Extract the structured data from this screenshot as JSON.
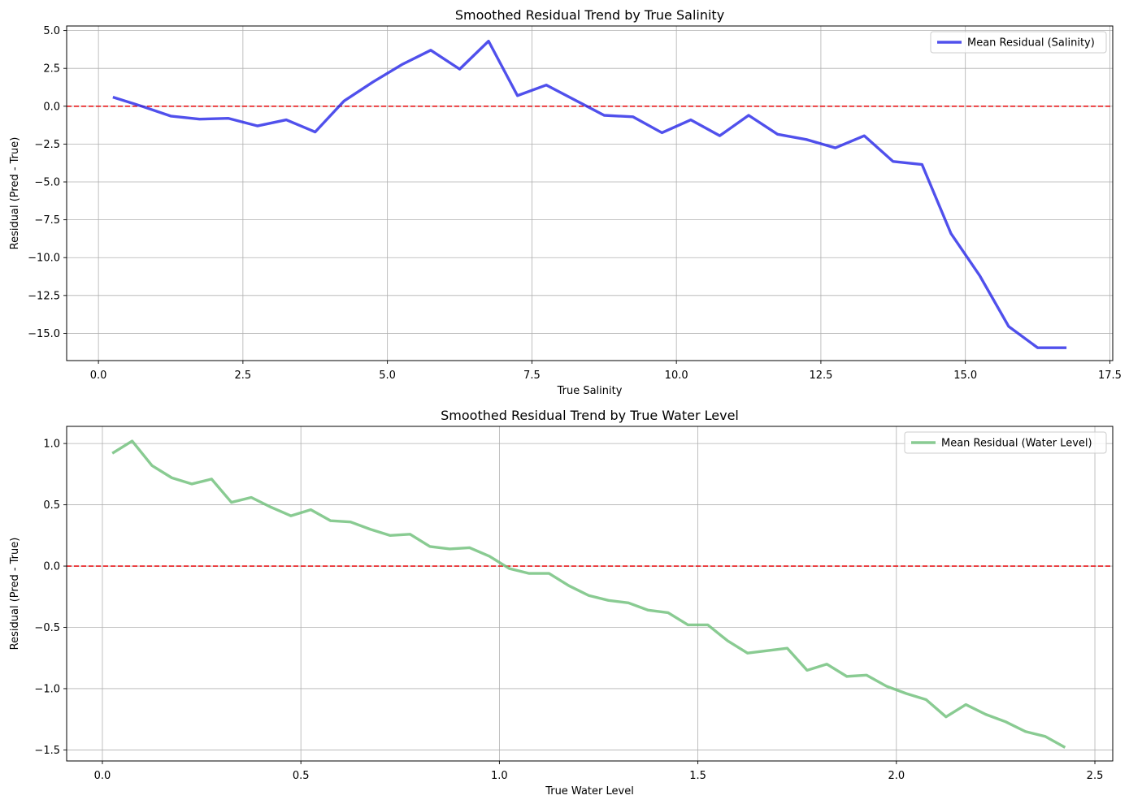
{
  "chart_data": [
    {
      "type": "line",
      "title": "Smoothed Residual Trend by True Salinity",
      "xlabel": "True Salinity",
      "ylabel": "Residual (Pred - True)",
      "xlim": [
        -0.55,
        17.55
      ],
      "ylim": [
        -16.8,
        5.3
      ],
      "xticks": [
        0.0,
        2.5,
        5.0,
        7.5,
        10.0,
        12.5,
        15.0,
        17.5
      ],
      "xtick_labels": [
        "0.0",
        "2.5",
        "5.0",
        "7.5",
        "10.0",
        "12.5",
        "15.0",
        "17.5"
      ],
      "yticks": [
        5.0,
        2.5,
        0.0,
        -2.5,
        -5.0,
        -7.5,
        -10.0,
        -12.5,
        -15.0
      ],
      "ytick_labels": [
        "5.0",
        "2.5",
        "0.0",
        "−2.5",
        "−5.0",
        "−7.5",
        "−10.0",
        "−12.5",
        "−15.0"
      ],
      "grid": true,
      "legend_position": "top-right",
      "reference_line": {
        "y": 0,
        "color": "#e8191b",
        "style": "dashed"
      },
      "series": [
        {
          "name": "Mean Residual (Salinity)",
          "color": "#2a2ae8",
          "x": [
            0.25,
            0.75,
            1.25,
            1.75,
            2.25,
            2.75,
            3.25,
            3.75,
            4.25,
            4.75,
            5.25,
            5.75,
            6.25,
            6.75,
            7.25,
            7.75,
            8.25,
            8.75,
            9.25,
            9.75,
            10.25,
            10.75,
            11.25,
            11.75,
            12.25,
            12.75,
            13.25,
            13.75,
            14.25,
            14.75,
            15.25,
            15.75,
            16.25,
            16.75
          ],
          "y": [
            0.6,
            0.0,
            -0.65,
            -0.85,
            -0.8,
            -1.3,
            -0.9,
            -1.7,
            0.35,
            1.6,
            2.75,
            3.7,
            2.45,
            4.3,
            0.7,
            1.4,
            0.4,
            -0.6,
            -0.7,
            -1.75,
            -0.9,
            -1.95,
            -0.6,
            -1.85,
            -2.2,
            -2.75,
            -1.95,
            -3.65,
            -3.85,
            -8.4,
            -11.2,
            -14.55,
            -15.95,
            -15.95
          ]
        }
      ]
    },
    {
      "type": "line",
      "title": "Smoothed Residual Trend by True Water Level",
      "xlabel": "True Water Level",
      "ylabel": "Residual (Pred - True)",
      "xlim": [
        -0.09,
        2.545
      ],
      "ylim": [
        -1.59,
        1.14
      ],
      "xticks": [
        0.0,
        0.5,
        1.0,
        1.5,
        2.0,
        2.5
      ],
      "xtick_labels": [
        "0.0",
        "0.5",
        "1.0",
        "1.5",
        "2.0",
        "2.5"
      ],
      "yticks": [
        1.0,
        0.5,
        0.0,
        -0.5,
        -1.0,
        -1.5
      ],
      "ytick_labels": [
        "1.0",
        "0.5",
        "0.0",
        "−0.5",
        "−1.0",
        "−1.5"
      ],
      "grid": true,
      "legend_position": "top-right",
      "reference_line": {
        "y": 0,
        "color": "#e8191b",
        "style": "dashed"
      },
      "series": [
        {
          "name": "Mean Residual (Water Level)",
          "color": "#6fc07a",
          "x": [
            0.025,
            0.075,
            0.125,
            0.175,
            0.225,
            0.275,
            0.325,
            0.375,
            0.425,
            0.475,
            0.525,
            0.575,
            0.625,
            0.675,
            0.725,
            0.775,
            0.825,
            0.875,
            0.925,
            0.975,
            1.025,
            1.075,
            1.125,
            1.175,
            1.225,
            1.275,
            1.325,
            1.375,
            1.425,
            1.475,
            1.525,
            1.575,
            1.625,
            1.675,
            1.725,
            1.775,
            1.825,
            1.875,
            1.925,
            1.975,
            2.025,
            2.075,
            2.125,
            2.175,
            2.225,
            2.275,
            2.325,
            2.375,
            2.425
          ],
          "y": [
            0.92,
            1.02,
            0.82,
            0.72,
            0.67,
            0.71,
            0.52,
            0.56,
            0.48,
            0.41,
            0.46,
            0.37,
            0.36,
            0.3,
            0.25,
            0.26,
            0.16,
            0.14,
            0.15,
            0.08,
            -0.02,
            -0.06,
            -0.06,
            -0.16,
            -0.24,
            -0.28,
            -0.3,
            -0.36,
            -0.38,
            -0.48,
            -0.48,
            -0.61,
            -0.71,
            -0.69,
            -0.67,
            -0.85,
            -0.8,
            -0.9,
            -0.89,
            -0.98,
            -1.04,
            -1.09,
            -1.23,
            -1.13,
            -1.21,
            -1.27,
            -1.35,
            -1.39,
            -1.48
          ]
        }
      ]
    }
  ]
}
